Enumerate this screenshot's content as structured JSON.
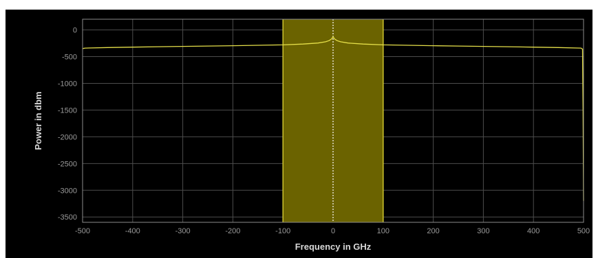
{
  "chart_data": {
    "type": "line",
    "title": "",
    "xlabel": "Frequency in GHz",
    "ylabel": "Power in dbm",
    "xlim": [
      -500,
      500
    ],
    "ylim": [
      -3600,
      200
    ],
    "xticks": [
      -500,
      -400,
      -300,
      -200,
      -100,
      0,
      100,
      200,
      300,
      400,
      500
    ],
    "yticks": [
      0,
      -500,
      -1000,
      -1500,
      -2000,
      -2500,
      -3000,
      -3500
    ],
    "grid": true,
    "highlight_band": {
      "x_from": -100,
      "x_to": 100,
      "color": "#6b6300"
    },
    "center_marker_x": 0,
    "series": [
      {
        "color": "#e6e04a",
        "x": [
          -500,
          -495,
          -450,
          -400,
          -350,
          -300,
          -250,
          -200,
          -150,
          -100,
          -60,
          -30,
          -15,
          -8,
          -3,
          -1,
          0,
          1,
          3,
          8,
          15,
          30,
          60,
          100,
          150,
          200,
          250,
          300,
          350,
          400,
          450,
          495,
          498,
          499,
          500
        ],
        "y": [
          -350,
          -340,
          -330,
          -322,
          -315,
          -308,
          -302,
          -295,
          -288,
          -280,
          -265,
          -245,
          -222,
          -200,
          -170,
          -140,
          -130,
          -140,
          -170,
          -200,
          -222,
          -245,
          -265,
          -280,
          -288,
          -295,
          -302,
          -308,
          -315,
          -322,
          -330,
          -340,
          -360,
          -1500,
          -3200
        ]
      }
    ]
  },
  "colors": {
    "background": "#000000",
    "grid": "#4d4d4d",
    "axes_box": "#8c8c8c",
    "band_edge": "#cfc62e"
  }
}
